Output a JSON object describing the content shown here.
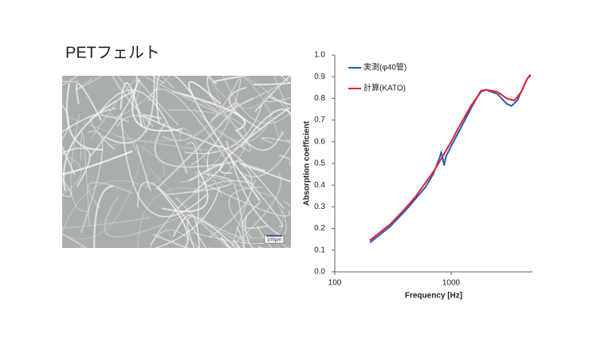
{
  "slide_title": "PETフェルト",
  "photo_scale_label": "100μm",
  "chart_data": {
    "type": "line",
    "x_label": "Frequency [Hz]",
    "y_label": "Absorption coefficient",
    "xscale": "log",
    "xlim": [
      100,
      5000
    ],
    "xticks": [
      100,
      1000
    ],
    "ylim": [
      0,
      1
    ],
    "yticks": [
      {
        "value": 0,
        "label": "0.0"
      },
      0.1,
      0.2,
      0.3,
      0.4,
      0.5,
      0.6,
      0.7,
      0.8,
      0.9,
      {
        "value": 1,
        "label": "1.0"
      }
    ],
    "grid": false,
    "legend": "upper-left",
    "series": [
      {
        "name": "実測(φ40管)",
        "color": "#1f5fbf",
        "x": [
          200,
          300,
          400,
          500,
          600,
          700,
          800,
          820,
          850,
          870,
          900,
          1000,
          1200,
          1500,
          1800,
          2000,
          2500,
          3000,
          3300,
          3700,
          4000,
          4500,
          4800
        ],
        "values": [
          0.135,
          0.21,
          0.28,
          0.34,
          0.39,
          0.45,
          0.53,
          0.55,
          0.52,
          0.49,
          0.53,
          0.58,
          0.66,
          0.76,
          0.835,
          0.84,
          0.82,
          0.775,
          0.765,
          0.79,
          0.83,
          0.89,
          0.91
        ]
      },
      {
        "name": "計算(KATO)",
        "color": "#e8202a",
        "x": [
          200,
          300,
          400,
          500,
          600,
          700,
          800,
          1000,
          1200,
          1500,
          1800,
          2000,
          2500,
          3000,
          3500,
          4000,
          4500,
          4800
        ],
        "values": [
          0.145,
          0.22,
          0.29,
          0.35,
          0.41,
          0.46,
          0.51,
          0.6,
          0.68,
          0.77,
          0.83,
          0.84,
          0.83,
          0.8,
          0.79,
          0.83,
          0.89,
          0.905
        ]
      }
    ]
  }
}
